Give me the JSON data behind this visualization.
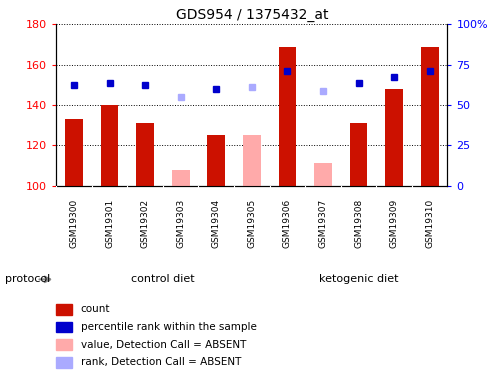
{
  "title": "GDS954 / 1375432_at",
  "samples": [
    "GSM19300",
    "GSM19301",
    "GSM19302",
    "GSM19303",
    "GSM19304",
    "GSM19305",
    "GSM19306",
    "GSM19307",
    "GSM19308",
    "GSM19309",
    "GSM19310"
  ],
  "count_values": [
    133,
    140,
    131,
    null,
    125,
    null,
    169,
    null,
    131,
    148,
    169
  ],
  "absent_count_values": [
    null,
    null,
    null,
    108,
    null,
    125,
    null,
    111,
    null,
    null,
    null
  ],
  "blue_rank_present": [
    150,
    151,
    150,
    null,
    148,
    null,
    157,
    null,
    151,
    154,
    157
  ],
  "blue_rank_absent": [
    null,
    null,
    null,
    144,
    null,
    149,
    null,
    147,
    null,
    null,
    null
  ],
  "ylim_left": [
    100,
    180
  ],
  "ylim_right": [
    0,
    100
  ],
  "yticks_left": [
    100,
    120,
    140,
    160,
    180
  ],
  "ytick_labels_left": [
    "100",
    "120",
    "140",
    "160",
    "180"
  ],
  "yticks_right": [
    0,
    25,
    50,
    75,
    100
  ],
  "ytick_labels_right": [
    "0",
    "25",
    "50",
    "75",
    "100%"
  ],
  "bar_color_present": "#cc1100",
  "bar_color_absent": "#ffaaaa",
  "dot_color_present": "#0000cc",
  "dot_color_absent": "#aaaaff",
  "bg_color": "#ffffff",
  "ctrl_color": "#aaffaa",
  "keto_color": "#55ee55",
  "title_fontsize": 10,
  "axis_fontsize": 8,
  "legend_fontsize": 7.5,
  "label_fontsize": 6.5,
  "protocol_label": "protocol",
  "ctrl_label": "control diet",
  "keto_label": "ketogenic diet",
  "legend_labels": [
    "count",
    "percentile rank within the sample",
    "value, Detection Call = ABSENT",
    "rank, Detection Call = ABSENT"
  ],
  "legend_colors": [
    "#cc1100",
    "#0000cc",
    "#ffaaaa",
    "#aaaaff"
  ],
  "n_control": 6,
  "n_keto": 5
}
